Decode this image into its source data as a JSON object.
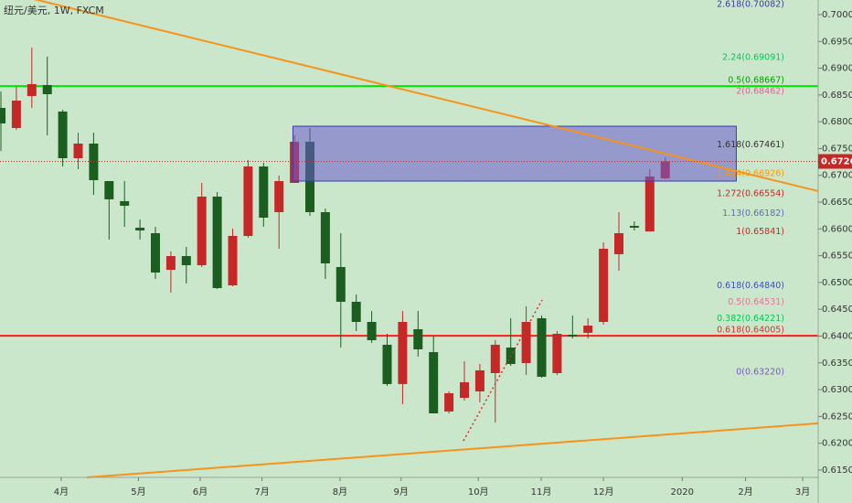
{
  "chart_data": {
    "type": "candlestick",
    "title": "纽元/美元, 1W, FXCM",
    "x": [
      0,
      1,
      2,
      3,
      4,
      5,
      6,
      7,
      8,
      9,
      10,
      11,
      12,
      13,
      14,
      15,
      16,
      17,
      18,
      19,
      20,
      21,
      22,
      23,
      24,
      25,
      26,
      27,
      28,
      29,
      30,
      31,
      32,
      33,
      34,
      35,
      36,
      37,
      38,
      39,
      40,
      41,
      42,
      43
    ],
    "open": [
      0.68259,
      0.67883,
      0.68481,
      0.68686,
      0.68191,
      0.6732,
      0.67593,
      0.66893,
      0.66518,
      0.66023,
      0.6592,
      0.65237,
      0.65493,
      0.65323,
      0.66603,
      0.64947,
      0.65869,
      0.67166,
      0.66313,
      0.66859,
      0.67627,
      0.66313,
      0.65289,
      0.6464,
      0.64264,
      0.63838,
      0.63104,
      0.64128,
      0.63701,
      0.62592,
      0.62847,
      0.62967,
      0.63308,
      0.63786,
      0.63496,
      0.64333,
      0.63308,
      0.64025,
      0.6406,
      0.64264,
      0.65528,
      0.66057,
      0.65954,
      0.66944
    ],
    "high": [
      0.68566,
      0.68651,
      0.69385,
      0.69215,
      0.68225,
      0.67798,
      0.67798,
      0.66893,
      0.66893,
      0.66176,
      0.6604,
      0.65579,
      0.65664,
      0.66859,
      0.66688,
      0.66006,
      0.67286,
      0.67235,
      0.66996,
      0.67747,
      0.67883,
      0.66381,
      0.6592,
      0.64777,
      0.64469,
      0.64042,
      0.64469,
      0.64469,
      0.63991,
      0.62967,
      0.6353,
      0.63479,
      0.63923,
      0.64333,
      0.64555,
      0.64384,
      0.64094,
      0.64384,
      0.64333,
      0.65749,
      0.66313,
      0.66142,
      0.67115,
      0.67337
    ],
    "low": [
      0.67456,
      0.67849,
      0.68259,
      0.67747,
      0.67166,
      0.67115,
      0.66637,
      0.65801,
      0.6604,
      0.65801,
      0.65067,
      0.64811,
      0.64981,
      0.65289,
      0.64879,
      0.6493,
      0.65835,
      0.6604,
      0.6563,
      0.66859,
      0.66245,
      0.65067,
      0.63786,
      0.64094,
      0.63872,
      0.6307,
      0.62728,
      0.63616,
      0.62557,
      0.62557,
      0.62796,
      0.62762,
      0.62387,
      0.63445,
      0.63274,
      0.63223,
      0.63274,
      0.63957,
      0.63957,
      0.64213,
      0.6522,
      0.65971,
      0.65954,
      0.66927
    ],
    "close": [
      0.67969,
      0.68395,
      0.68703,
      0.68515,
      0.6732,
      0.67593,
      0.6691,
      0.66552,
      0.66432,
      0.65971,
      0.65186,
      0.65493,
      0.65323,
      0.66603,
      0.64896,
      0.65869,
      0.67166,
      0.6621,
      0.66893,
      0.67627,
      0.66313,
      0.65357,
      0.6464,
      0.64264,
      0.63923,
      0.63104,
      0.64264,
      0.63752,
      0.62557,
      0.62933,
      0.63138,
      0.6336,
      0.63838,
      0.63479,
      0.64264,
      0.6324,
      0.64042,
      0.63991,
      0.64196,
      0.6563,
      0.6592,
      0.66023,
      0.66979,
      0.6726
    ],
    "price_label": "0.67260",
    "up_color": "#c62828",
    "down_color": "#1b5e20",
    "xlim": [
      -0.06,
      52.9
    ],
    "xticks": [
      {
        "value": 3.9,
        "label": "4月"
      },
      {
        "value": 8.9,
        "label": "5月"
      },
      {
        "value": 12.9,
        "label": "6月"
      },
      {
        "value": 16.9,
        "label": "7月"
      },
      {
        "value": 21.95,
        "label": "8月"
      },
      {
        "value": 25.9,
        "label": "9月"
      },
      {
        "value": 30.9,
        "label": "10月"
      },
      {
        "value": 34.97,
        "label": "11月"
      },
      {
        "value": 39.0,
        "label": "12月"
      },
      {
        "value": 44.1,
        "label": "2020"
      },
      {
        "value": 48.2,
        "label": "2月"
      },
      {
        "value": 51.9,
        "label": "3月"
      }
    ],
    "ylim": [
      0.61362,
      0.70273
    ],
    "yticks": [
      {
        "value": 0.615,
        "label": "0.61500"
      },
      {
        "value": 0.62,
        "label": "0.62000"
      },
      {
        "value": 0.625,
        "label": "0.62500"
      },
      {
        "value": 0.63,
        "label": "0.63000"
      },
      {
        "value": 0.635,
        "label": "0.63500"
      },
      {
        "value": 0.64,
        "label": "0.64000"
      },
      {
        "value": 0.645,
        "label": "0.64500"
      },
      {
        "value": 0.65,
        "label": "0.65000"
      },
      {
        "value": 0.655,
        "label": "0.65500"
      },
      {
        "value": 0.66,
        "label": "0.66000"
      },
      {
        "value": 0.665,
        "label": "0.66500"
      },
      {
        "value": 0.67,
        "label": "0.67000"
      },
      {
        "value": 0.675,
        "label": "0.67500"
      },
      {
        "value": 0.68,
        "label": "0.68000"
      },
      {
        "value": 0.685,
        "label": "0.68500"
      },
      {
        "value": 0.69,
        "label": "0.69000"
      },
      {
        "value": 0.695,
        "label": "0.69500"
      },
      {
        "value": 0.7,
        "label": "0.70000"
      }
    ],
    "fib_levels": [
      {
        "value": 0.70082,
        "label": "2.618(0.70082)",
        "color": "#3b3ba8"
      },
      {
        "value": 0.69091,
        "label": "2.24(0.69091)",
        "color": "#00c853"
      },
      {
        "value": 0.68667,
        "label": "0.5(0.68667)",
        "color": "#00a000",
        "line_color": "#00e600"
      },
      {
        "value": 0.68462,
        "label": "2(0.68462)",
        "color": "#e0609a"
      },
      {
        "value": 0.67461,
        "label": "1.618(0.67461)",
        "color": "#333333"
      },
      {
        "value": 0.66926,
        "label": "1.414(0.66926)",
        "color": "#ff9800"
      },
      {
        "value": 0.66554,
        "label": "1.272(0.66554)",
        "color": "#c62828"
      },
      {
        "value": 0.66182,
        "label": "1.13(0.66182)",
        "color": "#5c6bc0"
      },
      {
        "value": 0.65841,
        "label": "1(0.65841)",
        "color": "#c62828"
      },
      {
        "value": 0.6484,
        "label": "0.618(0.64840)",
        "color": "#3f51b5"
      },
      {
        "value": 0.64531,
        "label": "0.5(0.64531)",
        "color": "#e57399"
      },
      {
        "value": 0.64221,
        "label": "0.382(0.64221)",
        "color": "#00c853"
      },
      {
        "value": 0.64005,
        "label": "0.618(0.64005)",
        "color": "#d32f2f",
        "line_color": "#ff1a1a"
      },
      {
        "value": 0.6322,
        "label": "0(0.63220)",
        "color": "#7e57c2"
      }
    ],
    "zones": [
      {
        "x": [
          18.9,
          47.6
        ],
        "y": [
          0.67917,
          0.66893
        ],
        "color": "#6a5acd"
      }
    ],
    "trendlines": [
      {
        "x": [
          -0.06,
          52.9
        ],
        "y": [
          0.70444,
          0.66706
        ],
        "color": "#f7931a",
        "dashed": false
      },
      {
        "x": [
          5.56,
          52.9
        ],
        "y": [
          0.61362,
          0.62371
        ],
        "color": "#f7931a",
        "dashed": false
      },
      {
        "x": [
          29.94,
          35.03
        ],
        "y": [
          0.62045,
          0.64674
        ],
        "color": "#d32f2f",
        "dashed": true
      }
    ]
  }
}
